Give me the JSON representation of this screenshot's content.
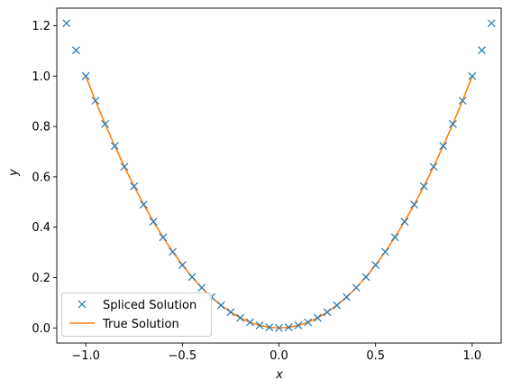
{
  "chart_data": {
    "type": "line",
    "xlabel": "x",
    "ylabel": "y",
    "xlim": [
      -1.15,
      1.15
    ],
    "ylim": [
      -0.06,
      1.27
    ],
    "x_ticks": [
      -1.0,
      -0.5,
      0.0,
      0.5,
      1.0
    ],
    "x_tick_labels": [
      "−1.0",
      "−0.5",
      "0.0",
      "0.5",
      "1.0"
    ],
    "y_ticks": [
      0.0,
      0.2,
      0.4,
      0.6,
      0.8,
      1.0,
      1.2
    ],
    "y_tick_labels": [
      "0.0",
      "0.2",
      "0.4",
      "0.6",
      "0.8",
      "1.0",
      "1.2"
    ],
    "grid": false,
    "legend_position": "lower-left",
    "series": [
      {
        "name": "Spliced Solution",
        "style": "markers-x",
        "color": "#1f77b4",
        "x": [
          -1.1,
          -1.05,
          -1.0,
          -0.95,
          -0.9,
          -0.85,
          -0.8,
          -0.75,
          -0.7,
          -0.65,
          -0.6,
          -0.55,
          -0.5,
          -0.45,
          -0.4,
          -0.35,
          -0.3,
          -0.25,
          -0.2,
          -0.15,
          -0.1,
          -0.05,
          0.0,
          0.05,
          0.1,
          0.15,
          0.2,
          0.25,
          0.3,
          0.35,
          0.4,
          0.45,
          0.5,
          0.55,
          0.6,
          0.65,
          0.7,
          0.75,
          0.8,
          0.85,
          0.9,
          0.95,
          1.0,
          1.05,
          1.1
        ],
        "y": [
          1.21,
          1.1025,
          1.0,
          0.9025,
          0.81,
          0.7225,
          0.64,
          0.5625,
          0.49,
          0.4225,
          0.36,
          0.3025,
          0.25,
          0.2025,
          0.16,
          0.1225,
          0.09,
          0.0625,
          0.04,
          0.0225,
          0.01,
          0.0025,
          0.0,
          0.0025,
          0.01,
          0.0225,
          0.04,
          0.0625,
          0.09,
          0.1225,
          0.16,
          0.2025,
          0.25,
          0.3025,
          0.36,
          0.4225,
          0.49,
          0.5625,
          0.64,
          0.7225,
          0.81,
          0.9025,
          1.0,
          1.1025,
          1.21
        ]
      },
      {
        "name": "True Solution",
        "style": "line",
        "color": "#ff7f0e",
        "x": [
          -1.0,
          -0.95,
          -0.9,
          -0.85,
          -0.8,
          -0.75,
          -0.7,
          -0.65,
          -0.6,
          -0.55,
          -0.5,
          -0.45,
          -0.4,
          -0.35,
          -0.3,
          -0.25,
          -0.2,
          -0.15,
          -0.1,
          -0.05,
          0.0,
          0.05,
          0.1,
          0.15,
          0.2,
          0.25,
          0.3,
          0.35,
          0.4,
          0.45,
          0.5,
          0.55,
          0.6,
          0.65,
          0.7,
          0.75,
          0.8,
          0.85,
          0.9,
          0.95,
          1.0
        ],
        "y": [
          1.0,
          0.9025,
          0.81,
          0.7225,
          0.64,
          0.5625,
          0.49,
          0.4225,
          0.36,
          0.3025,
          0.25,
          0.2025,
          0.16,
          0.1225,
          0.09,
          0.0625,
          0.04,
          0.0225,
          0.01,
          0.0025,
          0.0,
          0.0025,
          0.01,
          0.0225,
          0.04,
          0.0625,
          0.09,
          0.1225,
          0.16,
          0.2025,
          0.25,
          0.3025,
          0.36,
          0.4225,
          0.49,
          0.5625,
          0.64,
          0.7225,
          0.81,
          0.9025,
          1.0
        ]
      }
    ]
  }
}
